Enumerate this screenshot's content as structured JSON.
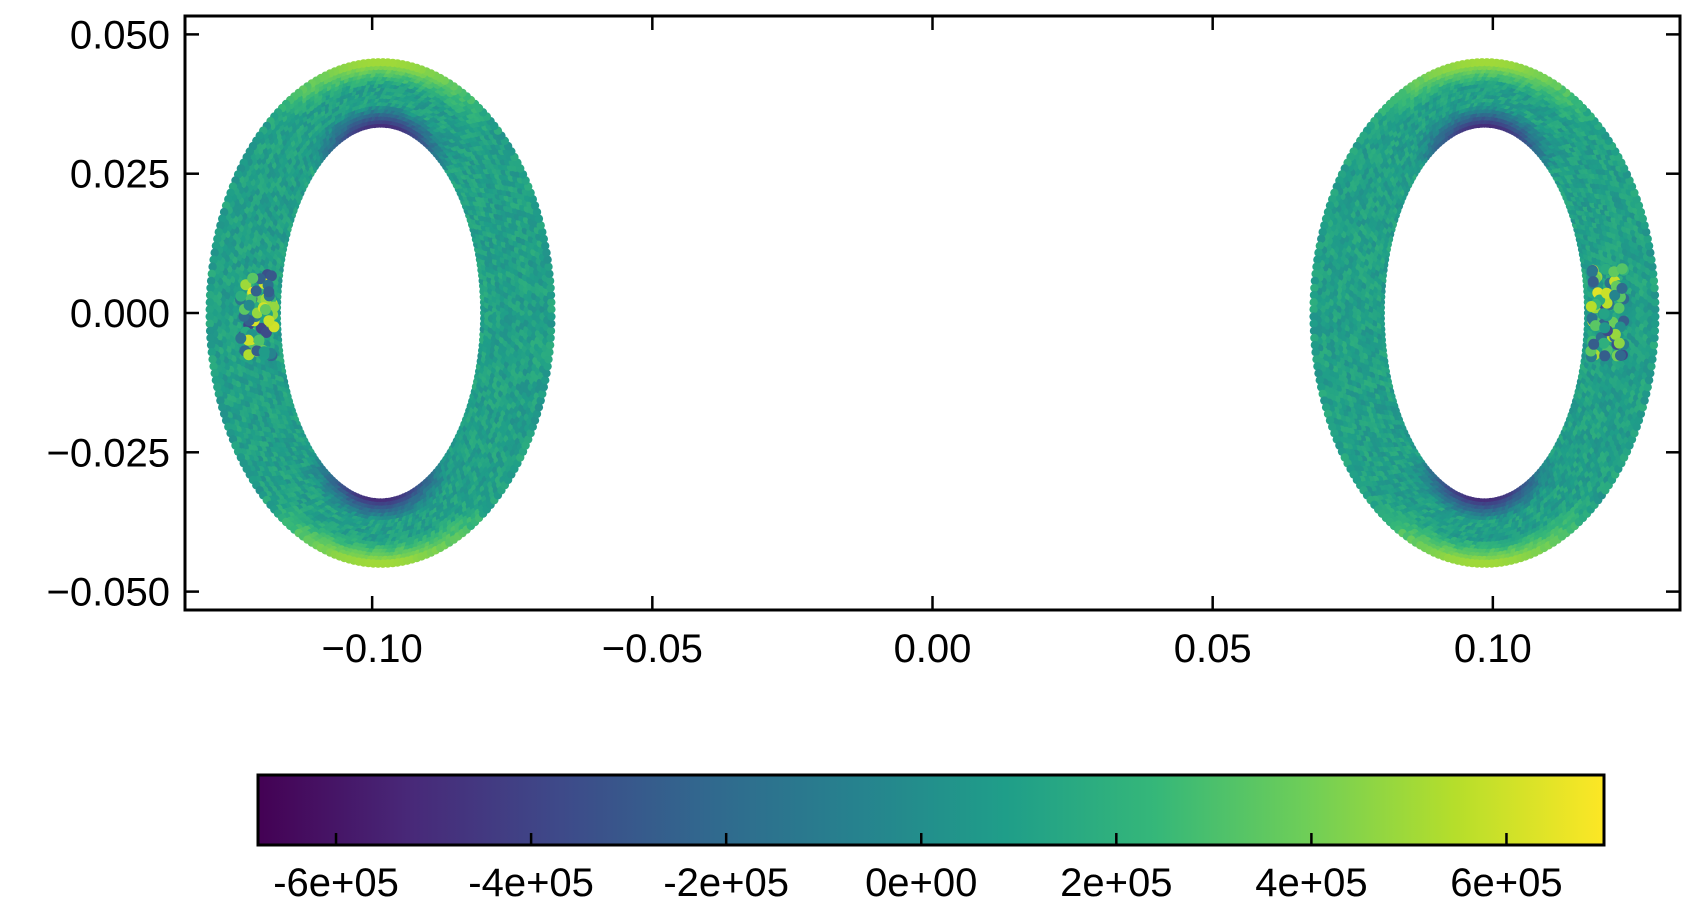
{
  "chart_data": {
    "type": "scatter",
    "title": "",
    "xlabel": "",
    "ylabel": "",
    "xlim": [
      -0.1334,
      0.1334
    ],
    "ylim": [
      -0.0533,
      0.0533
    ],
    "x_ticks": [
      {
        "value": -0.1,
        "label": "−0.10"
      },
      {
        "value": -0.05,
        "label": "−0.05"
      },
      {
        "value": 0.0,
        "label": "0.00"
      },
      {
        "value": 0.05,
        "label": "0.05"
      },
      {
        "value": 0.1,
        "label": "0.10"
      }
    ],
    "y_ticks": [
      {
        "value": 0.05,
        "label": "0.050"
      },
      {
        "value": 0.025,
        "label": "0.025"
      },
      {
        "value": 0.0,
        "label": "0.000"
      },
      {
        "value": -0.025,
        "label": "−0.025"
      },
      {
        "value": -0.05,
        "label": "−0.050"
      }
    ],
    "grid": false,
    "tick_direction": "in",
    "colormap": "viridis",
    "colormap_stops": [
      "#440154",
      "#482878",
      "#3e4989",
      "#31688e",
      "#26828e",
      "#1f9e89",
      "#35b779",
      "#6ece58",
      "#b5de2b",
      "#fde725"
    ],
    "colorbar": {
      "orientation": "horizontal",
      "placement": "bottom",
      "range": [
        -680000,
        700000
      ],
      "ticks": [
        {
          "value": -600000,
          "label": "-6e+05"
        },
        {
          "value": -400000,
          "label": "-4e+05"
        },
        {
          "value": -200000,
          "label": "-2e+05"
        },
        {
          "value": 0,
          "label": "0e+00"
        },
        {
          "value": 200000,
          "label": "2e+05"
        },
        {
          "value": 400000,
          "label": "4e+05"
        },
        {
          "value": 600000,
          "label": "6e+05"
        }
      ]
    },
    "regions": [
      {
        "center": [
          -0.0985,
          0.0
        ],
        "outer_half_width": 0.0305,
        "outer_half_height": 0.045,
        "inner_half_width": 0.0185,
        "inner_half_height": 0.034,
        "typical_value": 100000,
        "inner_top_bottom_value": -500000,
        "outer_top_bottom_value": 500000,
        "hot_spot_x": -0.1205,
        "hot_spot_values_range": [
          -400000,
          650000
        ]
      },
      {
        "center": [
          0.0985,
          0.0
        ],
        "outer_half_width": 0.0305,
        "outer_half_height": 0.045,
        "inner_half_width": 0.0185,
        "inner_half_height": 0.034,
        "typical_value": 100000,
        "inner_top_bottom_value": -500000,
        "outer_top_bottom_value": 500000,
        "hot_spot_x": 0.1205,
        "hot_spot_values_range": [
          -400000,
          650000
        ]
      }
    ]
  }
}
